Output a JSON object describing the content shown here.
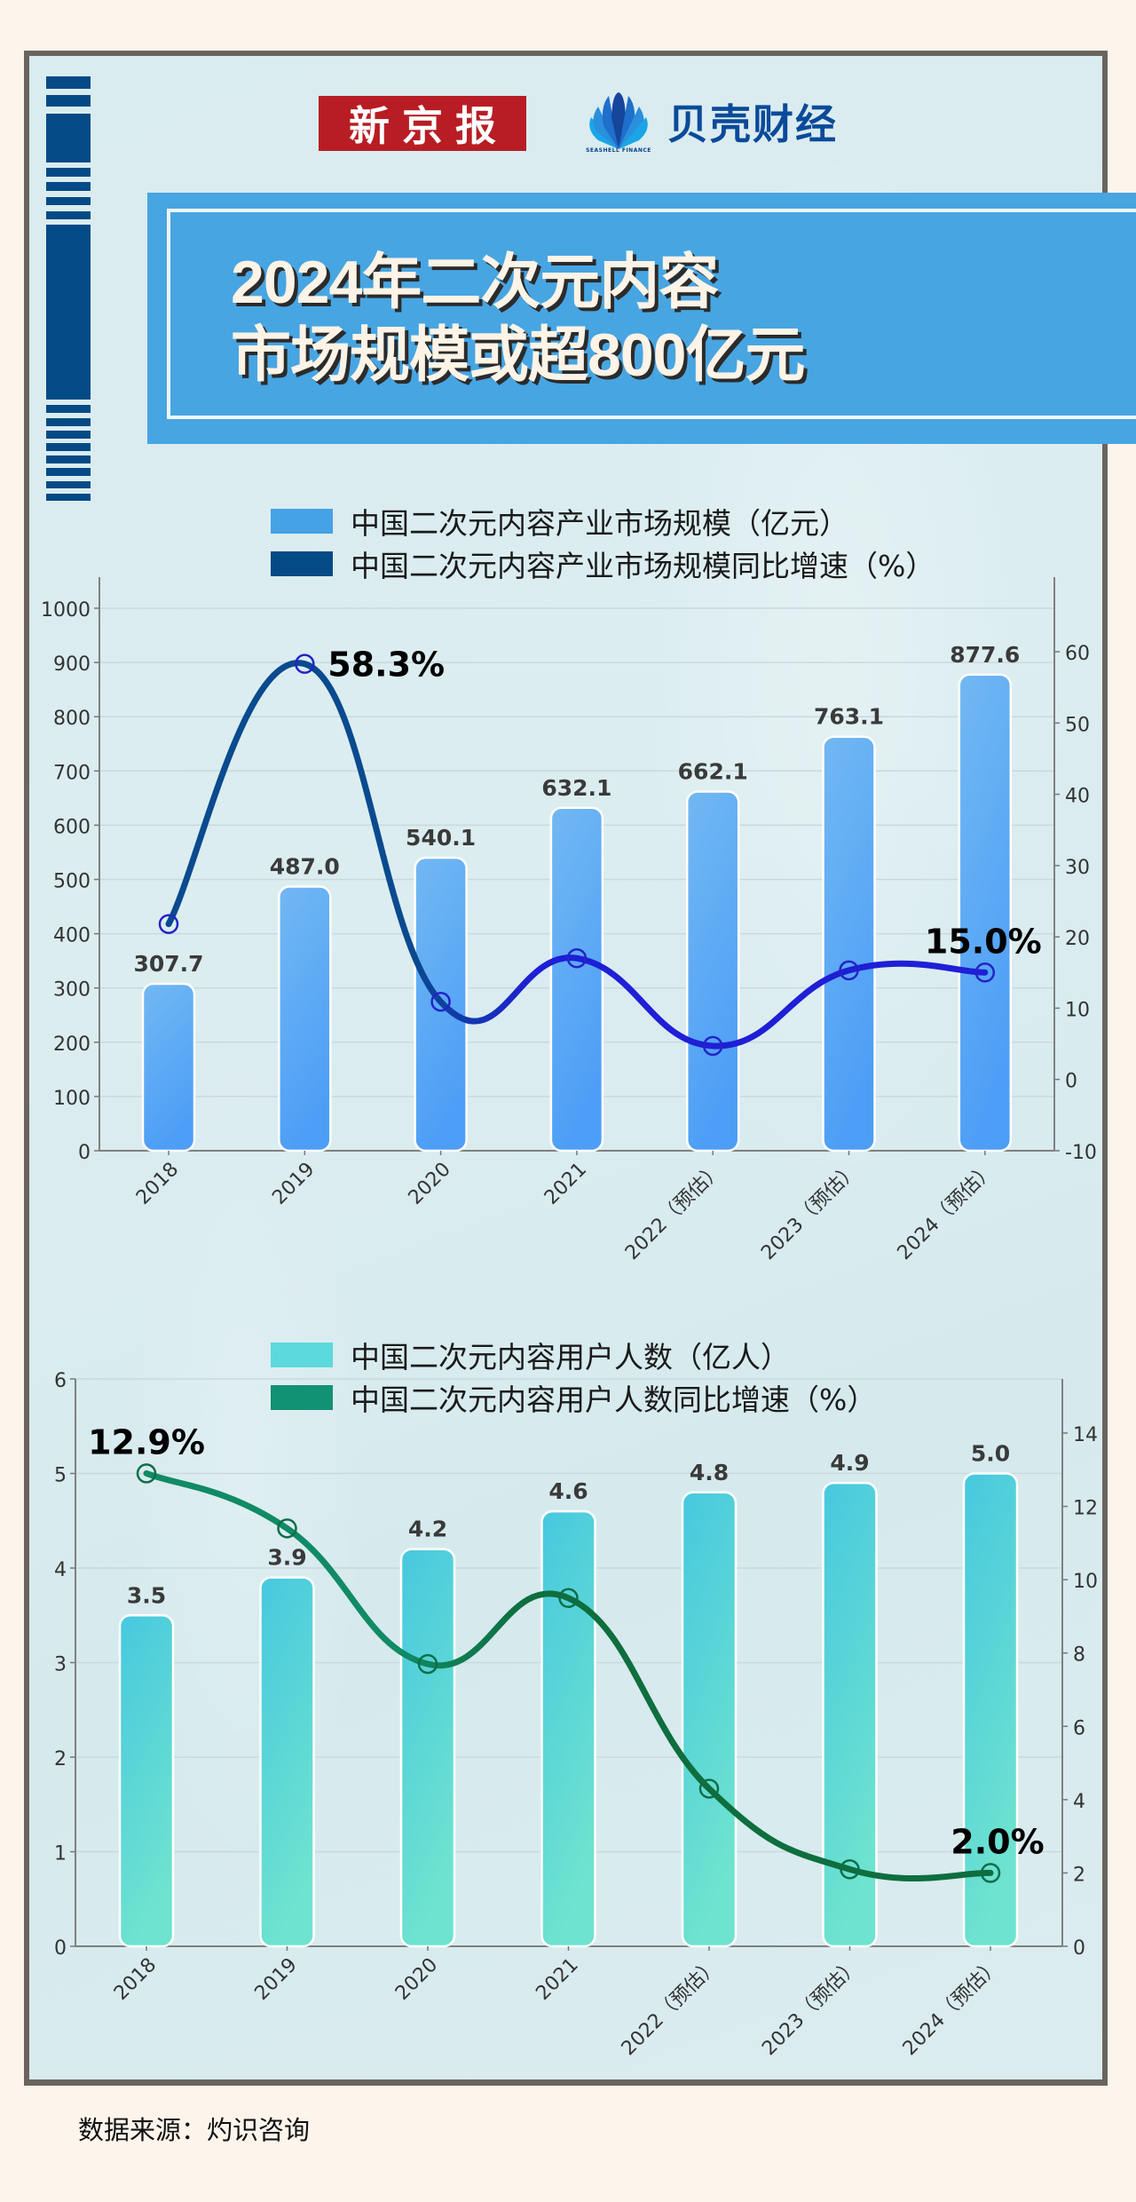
{
  "header": {
    "logo_left": "新京报",
    "logo_right": "贝壳财经",
    "logo_right_sub": "SEASHELL FINANCE",
    "title_line1": "2024年二次元内容",
    "title_line2": "市场规模或超800亿元"
  },
  "colors": {
    "page_bg": "#fdf5ec",
    "frame_border": "#6b645e",
    "stripe": "#034a86",
    "banner": "#47a5e2",
    "logo_red": "#b81d24",
    "chart1_bar_top": "#72b8f2",
    "chart1_bar_bottom": "#4d9ef7",
    "chart1_line": "#1f1fd6",
    "chart1_line_start": "#0a4a8e",
    "chart1_legend_bar": "#45a2e4",
    "chart1_legend_line": "#034a86",
    "chart2_bar_top": "#47c8df",
    "chart2_bar_bottom": "#6ee3cf",
    "chart2_line": "#0e6e3e",
    "chart2_legend_bar": "#5cd9dc",
    "chart2_legend_line": "#129274"
  },
  "chart_data": [
    {
      "type": "bar",
      "title": "",
      "categories": [
        "2018",
        "2019",
        "2020",
        "2021",
        "2022（预估）",
        "2023（预估）",
        "2024（预估）"
      ],
      "series": [
        {
          "name": "中国二次元内容产业市场规模（亿元）",
          "type": "bar",
          "axis": "left",
          "values": [
            307.7,
            487.0,
            540.1,
            632.1,
            662.1,
            763.1,
            877.6
          ],
          "labels": [
            "307.7",
            "487.0",
            "540.1",
            "632.1",
            "662.1",
            "763.1",
            "877.6"
          ]
        },
        {
          "name": "中国二次元内容产业市场规模同比增速（%）",
          "type": "line",
          "axis": "right",
          "values": [
            21.8,
            58.3,
            10.9,
            17.0,
            4.7,
            15.3,
            15.0
          ],
          "annotations": [
            {
              "index": 1,
              "text": "58.3%"
            },
            {
              "index": 6,
              "text": "15.0%"
            }
          ]
        }
      ],
      "left_axis": {
        "min": 0,
        "max": 1000,
        "ticks": [
          0,
          100,
          200,
          300,
          400,
          500,
          600,
          700,
          800,
          900,
          1000
        ]
      },
      "right_axis": {
        "min": -10,
        "max": 60,
        "ticks": [
          -10,
          0,
          10,
          20,
          30,
          40,
          50,
          60
        ]
      },
      "grid": true,
      "legend_position": "top"
    },
    {
      "type": "bar",
      "title": "",
      "categories": [
        "2018",
        "2019",
        "2020",
        "2021",
        "2022（预估）",
        "2023（预估）",
        "2024（预估）"
      ],
      "series": [
        {
          "name": "中国二次元内容用户人数（亿人）",
          "type": "bar",
          "axis": "left",
          "values": [
            3.5,
            3.9,
            4.2,
            4.6,
            4.8,
            4.9,
            5.0
          ],
          "labels": [
            "3.5",
            "3.9",
            "4.2",
            "4.6",
            "4.8",
            "4.9",
            "5.0"
          ]
        },
        {
          "name": "中国二次元内容用户人数同比增速（%）",
          "type": "line",
          "axis": "right",
          "values": [
            12.9,
            11.4,
            7.7,
            9.5,
            4.3,
            2.1,
            2.0
          ],
          "annotations": [
            {
              "index": 0,
              "text": "12.9%"
            },
            {
              "index": 6,
              "text": "2.0%"
            }
          ]
        }
      ],
      "left_axis": {
        "min": 0,
        "max": 6,
        "ticks": [
          0,
          1,
          2,
          3,
          4,
          5,
          6
        ]
      },
      "right_axis": {
        "min": 0,
        "max": 14,
        "ticks": [
          0,
          2,
          4,
          6,
          8,
          10,
          12,
          14
        ]
      },
      "grid": true,
      "legend_position": "top"
    }
  ],
  "footer": {
    "source": "数据来源：灼识咨询"
  }
}
